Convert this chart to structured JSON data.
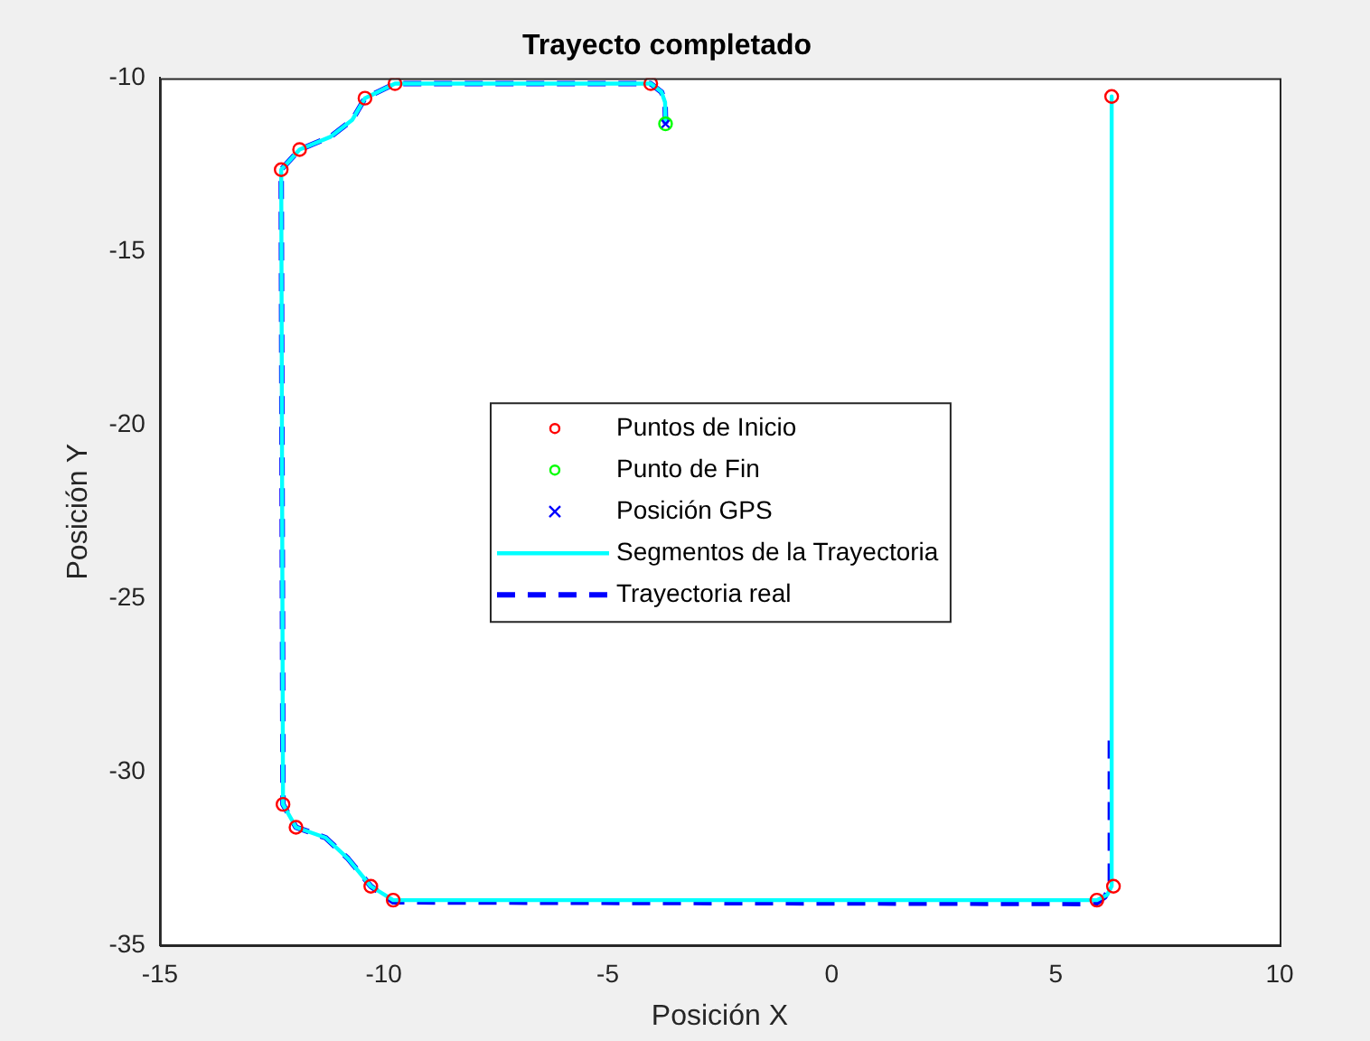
{
  "chart_data": {
    "type": "scatter",
    "title": "Trayecto completado",
    "xlabel": "Posición X",
    "ylabel": "Posición Y",
    "xlim": [
      -15,
      10
    ],
    "ylim": [
      -35,
      -10
    ],
    "xticks": [
      -15,
      -10,
      -5,
      0,
      5,
      10
    ],
    "yticks": [
      -35,
      -30,
      -25,
      -20,
      -15,
      -10
    ],
    "grid": false,
    "legend": "center",
    "series": [
      {
        "name": "Puntos de Inicio",
        "marker": "circle",
        "color": "#ff0000",
        "x": [
          6.25,
          -4.04,
          -9.75,
          -10.42,
          -11.88,
          -12.29,
          -12.25,
          -11.96,
          -10.29,
          -9.79,
          5.92,
          6.29
        ],
        "values": [
          -10.53,
          -10.16,
          -10.16,
          -10.58,
          -12.06,
          -12.64,
          -30.94,
          -31.6,
          -33.3,
          -33.7,
          -33.7,
          -33.3
        ]
      },
      {
        "name": "Punto de Fin",
        "marker": "circle",
        "color": "#00ff00",
        "x": [
          -3.71
        ],
        "values": [
          -11.32
        ]
      },
      {
        "name": "Posición GPS",
        "marker": "cross",
        "color": "#0000ff",
        "x": [
          -3.71
        ],
        "values": [
          -11.32
        ]
      },
      {
        "name": "Segmentos de la Trayectoria",
        "type": "line",
        "line_style": "solid",
        "marker": "none",
        "color": "#00ffff",
        "x": [
          6.25,
          6.25,
          6.15,
          5.92,
          -9.79,
          -10.29,
          -10.8,
          -11.3,
          -11.96,
          -12.25,
          -12.29,
          -11.88,
          -11.2,
          -10.7,
          -10.42,
          -9.75,
          -4.04,
          -3.8,
          -3.72,
          -3.71
        ],
        "values": [
          -10.53,
          -33.3,
          -33.55,
          -33.7,
          -33.7,
          -33.3,
          -32.5,
          -31.9,
          -31.6,
          -30.94,
          -12.64,
          -12.06,
          -11.7,
          -11.2,
          -10.58,
          -10.16,
          -10.16,
          -10.4,
          -10.7,
          -11.32
        ]
      },
      {
        "name": "Trayectoria real",
        "type": "line",
        "line_style": "dashed",
        "marker": "none",
        "color": "#0000ff",
        "x": [
          6.22,
          6.22,
          6.1,
          5.9,
          -9.79,
          -10.29,
          -10.8,
          -11.3,
          -11.96,
          -12.25,
          -12.29,
          -11.88,
          -11.2,
          -10.7,
          -10.42,
          -9.75,
          -4.04,
          -3.8,
          -3.72,
          -3.71
        ],
        "values": [
          -29.1,
          -33.3,
          -33.6,
          -33.8,
          -33.75,
          -33.3,
          -32.5,
          -31.9,
          -31.6,
          -30.94,
          -12.64,
          -12.06,
          -11.7,
          -11.2,
          -10.58,
          -10.16,
          -10.16,
          -10.4,
          -10.7,
          -11.32
        ]
      }
    ]
  }
}
